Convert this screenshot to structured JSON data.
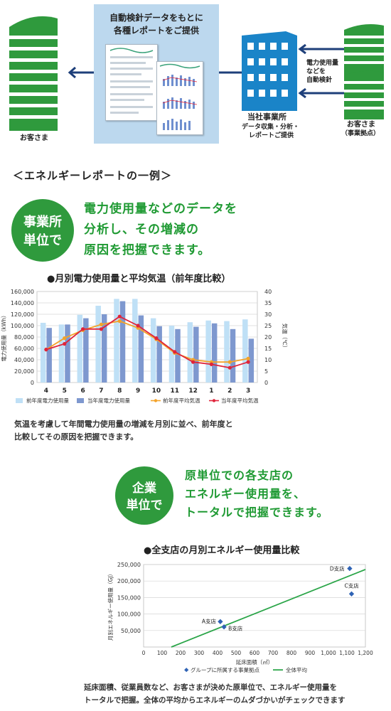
{
  "diagram": {
    "panel_title_lines": [
      "自動検針データをもとに",
      "各種レポートをご提供"
    ],
    "customer_left": "お客さま",
    "office_label": "当社事業所",
    "office_sub_lines": [
      "データ収集・分析・",
      "レポートご提供"
    ],
    "meter_lines": [
      "電力使用量",
      "などを",
      "自動検針"
    ],
    "customer_right": "お客さま",
    "customer_right_sub": "（事業拠点）",
    "colors": {
      "green": "#2f9a3d",
      "blue": "#1a84c8",
      "arrow": "#1e3f7a",
      "panel": "#bcd8ee"
    }
  },
  "section_heading": "＜エネルギーレポートの一例＞",
  "block1": {
    "badge_lines": [
      "事業所",
      "単位で"
    ],
    "lead_lines": [
      "電力使用量などのデータを",
      "分析し、その増減の",
      "原因を把握できます。"
    ],
    "chart_title": "●月別電力使用量と平均気温（前年度比較）",
    "description_lines": [
      "気温を考慮して年間電力使用量の増減を月別に並べ、前年度と",
      "比較してその原因を把握できます。"
    ]
  },
  "block2": {
    "badge_lines": [
      "企業",
      "単位で"
    ],
    "lead_lines": [
      "原単位での各支店の",
      "エネルギー使用量を、",
      "トータルで把握できます。"
    ],
    "chart_title": "●全支店の月別エネルギー使用量比較",
    "description_lines": [
      "延床面積、従業員数など、お客さまが決めた原単位で、エネルギー使用量を",
      "トータルで把握。全体の平均からエネルギーのムダづかいがチェックできます"
    ]
  },
  "chart_data": [
    {
      "type": "bar",
      "categories": [
        "4",
        "5",
        "6",
        "7",
        "8",
        "9",
        "10",
        "11",
        "12",
        "1",
        "2",
        "3"
      ],
      "ylabel": "電力使用量（kWh）",
      "y2label": "気温（℃）",
      "ylim": [
        0,
        160000
      ],
      "y2lim": [
        0,
        40
      ],
      "yticks": [
        "0",
        "20,000",
        "40,000",
        "60,000",
        "80,000",
        "100,000",
        "120,000",
        "140,000",
        "160,000"
      ],
      "y2ticks": [
        "0",
        "5",
        "10",
        "15",
        "20",
        "25",
        "30",
        "35",
        "40"
      ],
      "grid": true,
      "legend_position": "bottom",
      "series": [
        {
          "name": "前年度電力使用量",
          "kind": "bar",
          "color": "#bfe0f6",
          "values": [
            105000,
            102000,
            119000,
            135000,
            147000,
            147000,
            113000,
            100000,
            106000,
            109000,
            108000,
            111000
          ]
        },
        {
          "name": "当年度電力使用量",
          "kind": "bar",
          "color": "#7e98cf",
          "values": [
            96000,
            102000,
            113000,
            120000,
            143000,
            118000,
            99000,
            94000,
            98000,
            104000,
            94000,
            77000
          ]
        },
        {
          "name": "前年度平均気温",
          "kind": "line",
          "color": "#f3a32a",
          "axis": "right",
          "values": [
            14.5,
            19.5,
            23,
            25.5,
            27,
            24,
            19,
            13,
            10,
            9,
            9,
            10.5
          ]
        },
        {
          "name": "当年度平均気温",
          "kind": "line",
          "color": "#e0243a",
          "axis": "right",
          "values": [
            14.5,
            17,
            23.5,
            23.5,
            29,
            25,
            19.5,
            13.5,
            9,
            8,
            6.5,
            9
          ]
        }
      ]
    },
    {
      "type": "scatter",
      "xlabel": "延床面積（㎡）",
      "ylabel": "月別エネルギー使用量（GJ）",
      "xlim": [
        0,
        1200
      ],
      "ylim": [
        0,
        250000
      ],
      "xticks": [
        "0",
        "100",
        "200",
        "300",
        "400",
        "500",
        "600",
        "700",
        "800",
        "900",
        "1,000",
        "1,100",
        "1,200"
      ],
      "yticks": [
        "50,000",
        "100,000",
        "150,000",
        "200,000",
        "250,000"
      ],
      "legend_position": "bottom",
      "series": [
        {
          "name": "グループに所属する事業拠点",
          "kind": "scatter",
          "color": "#2f63b5",
          "points": [
            {
              "label": "A支店",
              "x": 415,
              "y": 77000
            },
            {
              "label": "B支店",
              "x": 435,
              "y": 61000
            },
            {
              "label": "C支店",
              "x": 1125,
              "y": 161000
            },
            {
              "label": "D支店",
              "x": 1115,
              "y": 238000
            }
          ]
        },
        {
          "name": "全体平均",
          "kind": "line",
          "color": "#2aa548",
          "points": [
            {
              "x": 150,
              "y": 0
            },
            {
              "x": 1200,
              "y": 235000
            }
          ]
        }
      ]
    }
  ]
}
